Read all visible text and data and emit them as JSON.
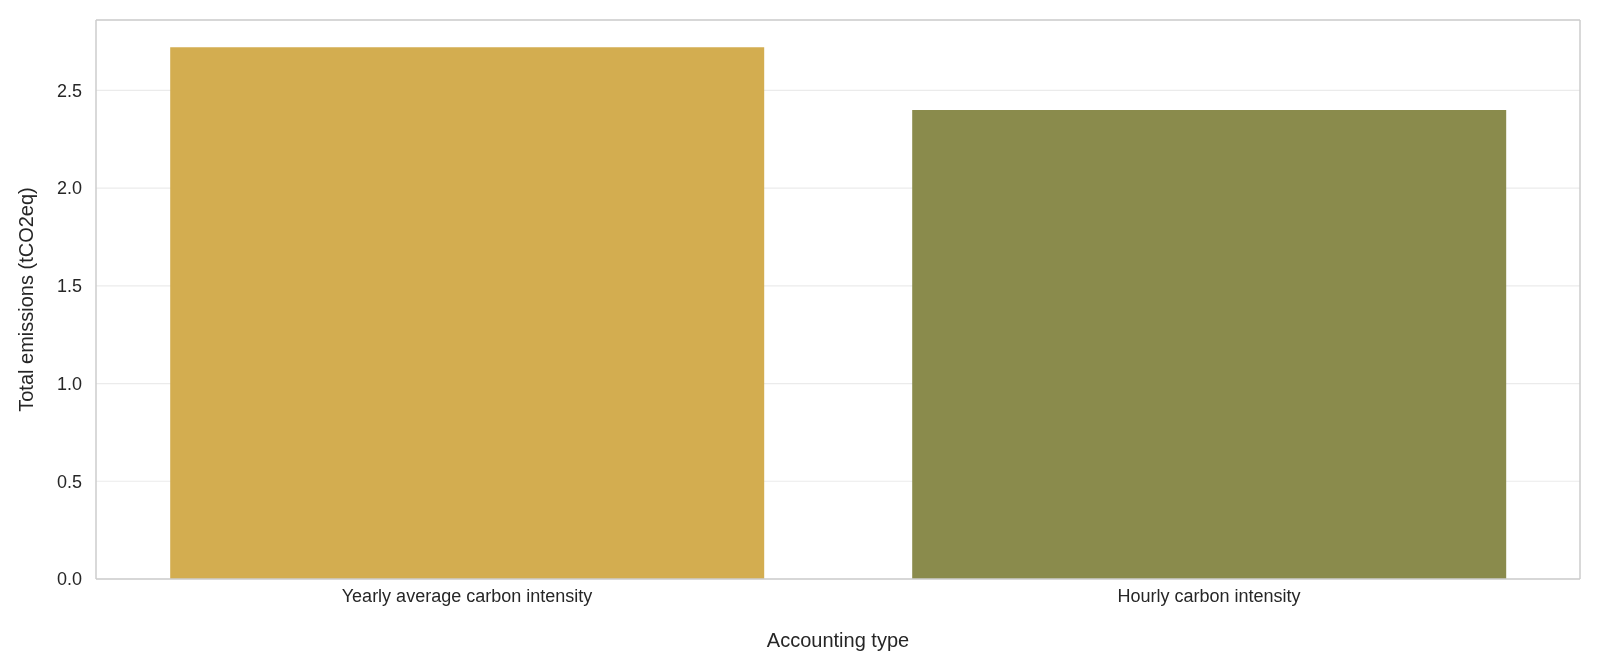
{
  "chart_data": {
    "type": "bar",
    "categories": [
      "Yearly average carbon intensity",
      "Hourly carbon intensity"
    ],
    "values": [
      2.72,
      2.4
    ],
    "colors": [
      "#d3ad50",
      "#8a8b4c"
    ],
    "xlabel": "Accounting type",
    "ylabel": "Total emissions (tCO2eq)",
    "ylim": [
      0,
      2.86
    ],
    "yticks": [
      {
        "value": 0,
        "label": "0.0"
      },
      0.5,
      {
        "value": 1,
        "label": "1.0"
      },
      1.5,
      {
        "value": 2,
        "label": "2.0"
      },
      2.5
    ],
    "grid": "y"
  }
}
